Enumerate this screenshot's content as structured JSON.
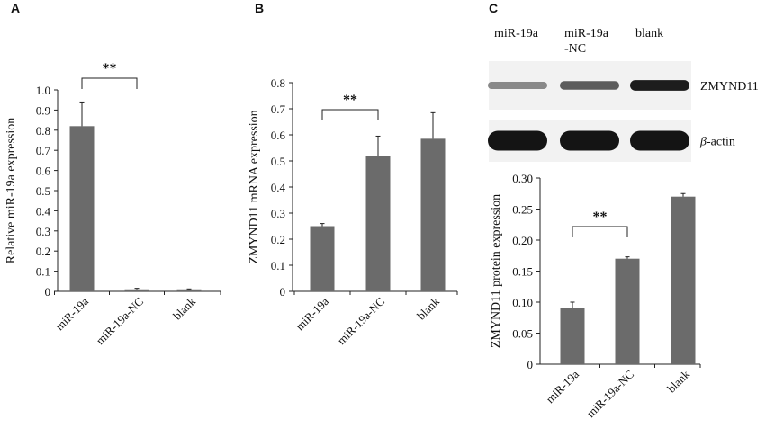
{
  "colors": {
    "bar": "#6b6b6b",
    "axis": "#222222",
    "text": "#111111",
    "blot_band": "#1a1a1a",
    "blot_bg": "#dcdcdc"
  },
  "chart_data": [
    {
      "panel": "A",
      "type": "bar",
      "categories": [
        "miR-19a",
        "miR-19a-NC",
        "blank"
      ],
      "values": [
        0.82,
        0.01,
        0.01
      ],
      "errors": [
        0.12,
        0.005,
        0.002
      ],
      "ylabel": "Relative miR-19a  expression",
      "ylim": [
        0,
        1.0
      ],
      "yticks": [
        "0",
        "0.1",
        "0.2",
        "0.3",
        "0.4",
        "0.5",
        "0.6",
        "0.7",
        "0.8",
        "0.9",
        "1.0"
      ],
      "significance": {
        "between": [
          0,
          1
        ],
        "label": "**"
      },
      "grid": false
    },
    {
      "panel": "B",
      "type": "bar",
      "categories": [
        "miR-19a",
        "miR-19a-NC",
        "blank"
      ],
      "values": [
        0.25,
        0.52,
        0.585
      ],
      "errors": [
        0.01,
        0.075,
        0.1
      ],
      "ylabel": "ZMYND11  mRNA  expression",
      "ylim": [
        0,
        0.8
      ],
      "yticks": [
        "0",
        "0.1",
        "0.2",
        "0.3",
        "0.4",
        "0.5",
        "0.6",
        "0.7",
        "0.8"
      ],
      "significance": {
        "between": [
          0,
          1
        ],
        "label": "**"
      },
      "grid": false
    },
    {
      "panel": "C",
      "type": "bar",
      "categories": [
        "miR-19a",
        "miR-19a-NC",
        "blank"
      ],
      "values": [
        0.09,
        0.17,
        0.27
      ],
      "errors": [
        0.01,
        0.003,
        0.005
      ],
      "ylabel": "ZMYND11  protein expression",
      "ylim": [
        0,
        0.3
      ],
      "yticks": [
        "0",
        "0.05",
        "0.10",
        "0.15",
        "0.20",
        "0.25",
        "0.30"
      ],
      "significance": {
        "between": [
          0,
          1
        ],
        "label": "**"
      },
      "grid": false
    }
  ],
  "blot": {
    "lanes": [
      {
        "line1": "miR-19a",
        "line2": ""
      },
      {
        "line1": "miR-19a",
        "line2": "-NC"
      },
      {
        "line1": "blank",
        "line2": ""
      }
    ],
    "rows": [
      {
        "label_italic": "",
        "label": "ZMYND11",
        "intensity": [
          0.35,
          0.6,
          0.95
        ]
      },
      {
        "label_italic": "β",
        "label": "-actin",
        "intensity": [
          1.0,
          1.0,
          1.0
        ]
      }
    ]
  }
}
